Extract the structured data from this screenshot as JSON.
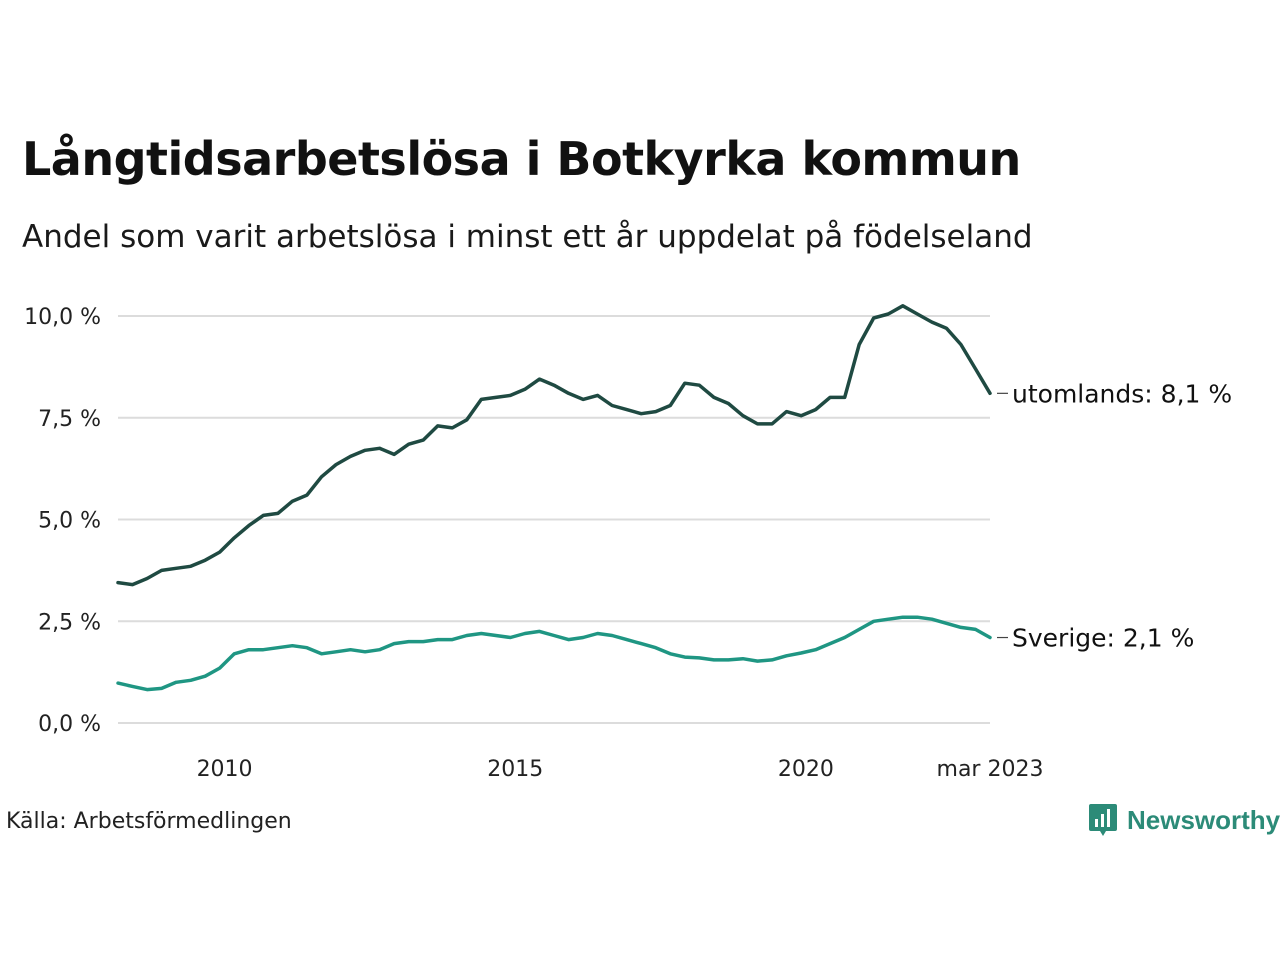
{
  "title": "Långtidsarbetslösa i Botkyrka kommun",
  "subtitle": "Andel som varit arbetslösa i minst ett år uppdelat på födelseland",
  "source": "Källa: Arbetsförmedlingen",
  "brand": {
    "name": "Newsworthy",
    "icon": "newsworthy-logo-icon",
    "color": "#2c8b78"
  },
  "chart_data": {
    "type": "line",
    "x_start": "2008-03",
    "x_end": "2023-03",
    "x_ticks": [
      {
        "value": "2010-01",
        "label": "2010"
      },
      {
        "value": "2015-01",
        "label": "2015"
      },
      {
        "value": "2020-01",
        "label": "2020"
      },
      {
        "value": "2023-03",
        "label": "mar 2023"
      }
    ],
    "y_ticks": [
      {
        "value": 0,
        "label": "0,0 %"
      },
      {
        "value": 2.5,
        "label": "2,5 %"
      },
      {
        "value": 5,
        "label": "5,0 %"
      },
      {
        "value": 7.5,
        "label": "7,5 %"
      },
      {
        "value": 10,
        "label": "10,0 %"
      }
    ],
    "ylim": [
      0,
      10.5
    ],
    "grid": true,
    "series": [
      {
        "name": "utomlands",
        "end_label": "utomlands: 8,1 %",
        "color": "#1f4a42",
        "points": [
          [
            "2008-03",
            3.45
          ],
          [
            "2008-06",
            3.4
          ],
          [
            "2008-09",
            3.55
          ],
          [
            "2008-12",
            3.75
          ],
          [
            "2009-03",
            3.8
          ],
          [
            "2009-06",
            3.85
          ],
          [
            "2009-09",
            4.0
          ],
          [
            "2009-12",
            4.2
          ],
          [
            "2010-03",
            4.55
          ],
          [
            "2010-06",
            4.85
          ],
          [
            "2010-09",
            5.1
          ],
          [
            "2010-12",
            5.15
          ],
          [
            "2011-03",
            5.45
          ],
          [
            "2011-06",
            5.6
          ],
          [
            "2011-09",
            6.05
          ],
          [
            "2011-12",
            6.35
          ],
          [
            "2012-03",
            6.55
          ],
          [
            "2012-06",
            6.7
          ],
          [
            "2012-09",
            6.75
          ],
          [
            "2012-12",
            6.6
          ],
          [
            "2013-03",
            6.85
          ],
          [
            "2013-06",
            6.95
          ],
          [
            "2013-09",
            7.3
          ],
          [
            "2013-12",
            7.25
          ],
          [
            "2014-03",
            7.45
          ],
          [
            "2014-06",
            7.95
          ],
          [
            "2014-09",
            8.0
          ],
          [
            "2014-12",
            8.05
          ],
          [
            "2015-03",
            8.2
          ],
          [
            "2015-06",
            8.45
          ],
          [
            "2015-09",
            8.3
          ],
          [
            "2015-12",
            8.1
          ],
          [
            "2016-03",
            7.95
          ],
          [
            "2016-06",
            8.05
          ],
          [
            "2016-09",
            7.8
          ],
          [
            "2016-12",
            7.7
          ],
          [
            "2017-03",
            7.6
          ],
          [
            "2017-06",
            7.65
          ],
          [
            "2017-09",
            7.8
          ],
          [
            "2017-12",
            8.35
          ],
          [
            "2018-03",
            8.3
          ],
          [
            "2018-06",
            8.0
          ],
          [
            "2018-09",
            7.85
          ],
          [
            "2018-12",
            7.55
          ],
          [
            "2019-03",
            7.35
          ],
          [
            "2019-06",
            7.35
          ],
          [
            "2019-09",
            7.65
          ],
          [
            "2019-12",
            7.55
          ],
          [
            "2020-03",
            7.7
          ],
          [
            "2020-06",
            8.0
          ],
          [
            "2020-09",
            8.0
          ],
          [
            "2020-12",
            9.3
          ],
          [
            "2021-03",
            9.95
          ],
          [
            "2021-06",
            10.05
          ],
          [
            "2021-09",
            10.25
          ],
          [
            "2021-12",
            10.05
          ],
          [
            "2022-03",
            9.85
          ],
          [
            "2022-06",
            9.7
          ],
          [
            "2022-09",
            9.3
          ],
          [
            "2022-12",
            8.7
          ],
          [
            "2023-03",
            8.1
          ]
        ]
      },
      {
        "name": "Sverige",
        "end_label": "Sverige: 2,1 %",
        "color": "#1f9683",
        "points": [
          [
            "2008-03",
            0.98
          ],
          [
            "2008-06",
            0.9
          ],
          [
            "2008-09",
            0.82
          ],
          [
            "2008-12",
            0.85
          ],
          [
            "2009-03",
            1.0
          ],
          [
            "2009-06",
            1.05
          ],
          [
            "2009-09",
            1.15
          ],
          [
            "2009-12",
            1.35
          ],
          [
            "2010-03",
            1.7
          ],
          [
            "2010-06",
            1.8
          ],
          [
            "2010-09",
            1.8
          ],
          [
            "2010-12",
            1.85
          ],
          [
            "2011-03",
            1.9
          ],
          [
            "2011-06",
            1.85
          ],
          [
            "2011-09",
            1.7
          ],
          [
            "2011-12",
            1.75
          ],
          [
            "2012-03",
            1.8
          ],
          [
            "2012-06",
            1.75
          ],
          [
            "2012-09",
            1.8
          ],
          [
            "2012-12",
            1.95
          ],
          [
            "2013-03",
            2.0
          ],
          [
            "2013-06",
            2.0
          ],
          [
            "2013-09",
            2.05
          ],
          [
            "2013-12",
            2.05
          ],
          [
            "2014-03",
            2.15
          ],
          [
            "2014-06",
            2.2
          ],
          [
            "2014-09",
            2.15
          ],
          [
            "2014-12",
            2.1
          ],
          [
            "2015-03",
            2.2
          ],
          [
            "2015-06",
            2.25
          ],
          [
            "2015-09",
            2.15
          ],
          [
            "2015-12",
            2.05
          ],
          [
            "2016-03",
            2.1
          ],
          [
            "2016-06",
            2.2
          ],
          [
            "2016-09",
            2.15
          ],
          [
            "2016-12",
            2.05
          ],
          [
            "2017-03",
            1.95
          ],
          [
            "2017-06",
            1.85
          ],
          [
            "2017-09",
            1.7
          ],
          [
            "2017-12",
            1.62
          ],
          [
            "2018-03",
            1.6
          ],
          [
            "2018-06",
            1.55
          ],
          [
            "2018-09",
            1.55
          ],
          [
            "2018-12",
            1.58
          ],
          [
            "2019-03",
            1.52
          ],
          [
            "2019-06",
            1.55
          ],
          [
            "2019-09",
            1.65
          ],
          [
            "2019-12",
            1.72
          ],
          [
            "2020-03",
            1.8
          ],
          [
            "2020-06",
            1.95
          ],
          [
            "2020-09",
            2.1
          ],
          [
            "2020-12",
            2.3
          ],
          [
            "2021-03",
            2.5
          ],
          [
            "2021-06",
            2.55
          ],
          [
            "2021-09",
            2.6
          ],
          [
            "2021-12",
            2.6
          ],
          [
            "2022-03",
            2.55
          ],
          [
            "2022-06",
            2.45
          ],
          [
            "2022-09",
            2.35
          ],
          [
            "2022-12",
            2.3
          ],
          [
            "2023-03",
            2.1
          ]
        ]
      }
    ]
  }
}
